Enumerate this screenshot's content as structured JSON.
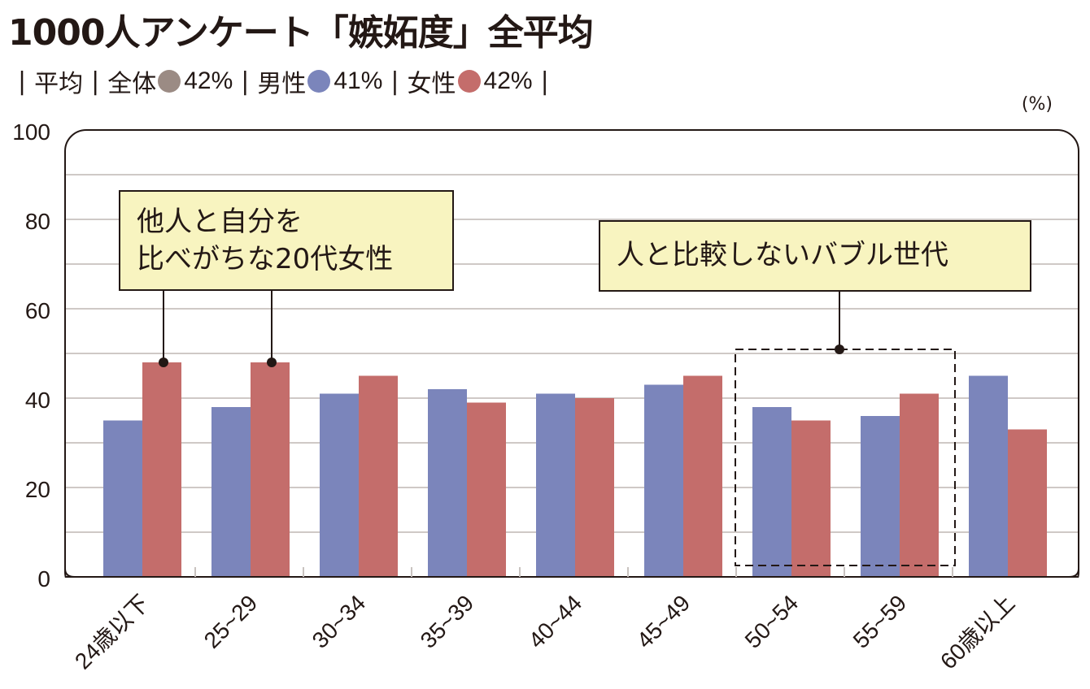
{
  "title": "1000人アンケート「嫉妬度」全平均",
  "legend": {
    "average_label": "平均",
    "items": [
      {
        "label": "全体",
        "value": "42%",
        "color": "#9b8b84"
      },
      {
        "label": "男性",
        "value": "41%",
        "color": "#7b85bb"
      },
      {
        "label": "女性",
        "value": "42%",
        "color": "#c46d6b"
      }
    ]
  },
  "unit_label": "(%)",
  "callouts": {
    "young_women_line1": "他人と自分を",
    "young_women_line2": "比べがちな20代女性",
    "bubble": "人と比較しないバブル世代"
  },
  "chart_data": {
    "type": "bar",
    "title": "1000人アンケート「嫉妬度」全平均",
    "xlabel": "",
    "ylabel": "(%)",
    "ylim": [
      0,
      100
    ],
    "yticks": [
      0,
      20,
      40,
      60,
      80,
      100
    ],
    "grid": true,
    "categories": [
      "24歳以下",
      "25~29",
      "30~34",
      "35~39",
      "40~44",
      "45~49",
      "50~54",
      "55~59",
      "60歳以上"
    ],
    "series": [
      {
        "name": "男性",
        "color": "#7b85bb",
        "values": [
          35,
          38,
          41,
          42,
          41,
          43,
          38,
          36,
          45
        ]
      },
      {
        "name": "女性",
        "color": "#c46d6b",
        "values": [
          48,
          48,
          45,
          39,
          40,
          45,
          35,
          41,
          33
        ]
      }
    ]
  }
}
